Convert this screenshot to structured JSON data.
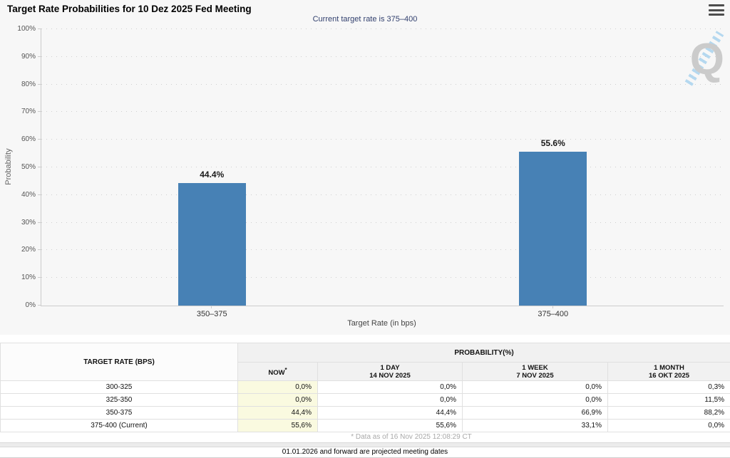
{
  "header": {
    "title": "Target Rate Probabilities for 10 Dez 2025 Fed Meeting"
  },
  "chart_data": {
    "type": "bar",
    "title": "Target Rate Probabilities for 10 Dez 2025 Fed Meeting",
    "subtitle": "Current target rate is 375–400",
    "categories": [
      "350–375",
      "375–400"
    ],
    "values": [
      44.4,
      55.6
    ],
    "value_labels": [
      "44.4%",
      "55.6%"
    ],
    "xlabel": "Target Rate (in bps)",
    "ylabel": "Probability",
    "ylim": [
      0,
      100
    ],
    "y_tick_step": 10,
    "y_tick_suffix": "%",
    "grid": "horizontal-dotted",
    "legend": "none",
    "bar_color": "#4781b5"
  },
  "watermark": {
    "letter": "Q"
  },
  "table": {
    "rate_header": "TARGET RATE (BPS)",
    "prob_header": "PROBABILITY(%)",
    "now_label": "NOW",
    "now_sup": "*",
    "period_columns": [
      {
        "label": "1 DAY",
        "date": "14 NOV 2025"
      },
      {
        "label": "1 WEEK",
        "date": "7 NOV 2025"
      },
      {
        "label": "1 MONTH",
        "date": "16 OKT 2025"
      }
    ],
    "rows": [
      {
        "rate": "300-325",
        "values": [
          "0,0%",
          "0,0%",
          "0,0%",
          "0,3%"
        ]
      },
      {
        "rate": "325-350",
        "values": [
          "0,0%",
          "0,0%",
          "0,0%",
          "11,5%"
        ]
      },
      {
        "rate": "350-375",
        "values": [
          "44,4%",
          "44,4%",
          "66,9%",
          "88,2%"
        ]
      },
      {
        "rate": "375-400 (Current)",
        "values": [
          "55,6%",
          "55,6%",
          "33,1%",
          "0,0%"
        ]
      }
    ]
  },
  "footer": {
    "footnote": "* Data as of 16 Nov 2025 12:08:29 CT",
    "projection_note": "01.01.2026 and forward are projected meeting dates"
  }
}
